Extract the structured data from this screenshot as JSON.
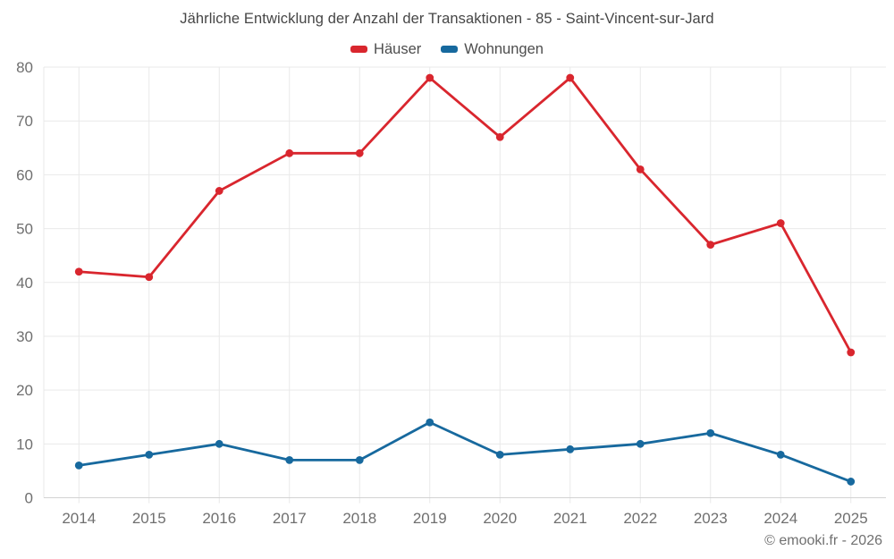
{
  "chart_data": {
    "type": "line",
    "title": "Jährliche Entwicklung der Anzahl der Transaktionen - 85 - Saint-Vincent-sur-Jard",
    "categories": [
      "2014",
      "2015",
      "2016",
      "2017",
      "2018",
      "2019",
      "2020",
      "2021",
      "2022",
      "2023",
      "2024",
      "2025"
    ],
    "series": [
      {
        "name": "Häuser",
        "color": "#d9262e",
        "values": [
          42,
          41,
          57,
          64,
          64,
          78,
          67,
          78,
          61,
          47,
          51,
          27
        ]
      },
      {
        "name": "Wohnungen",
        "color": "#17699e",
        "values": [
          6,
          8,
          10,
          7,
          7,
          14,
          8,
          9,
          10,
          12,
          8,
          3
        ]
      }
    ],
    "ylim": [
      0,
      80
    ],
    "ytick_step": 10,
    "grid": true,
    "legend_position": "top",
    "xlabel": "",
    "ylabel": ""
  },
  "footer": {
    "text": "© emooki.fr - 2026"
  },
  "colors": {
    "grid": "#e9e9e9",
    "axis": "#d2d2d2",
    "tick_label": "#6f6f6f",
    "title_text": "#464646",
    "legend_text": "#4d4d4d",
    "footer_text": "#707070"
  }
}
